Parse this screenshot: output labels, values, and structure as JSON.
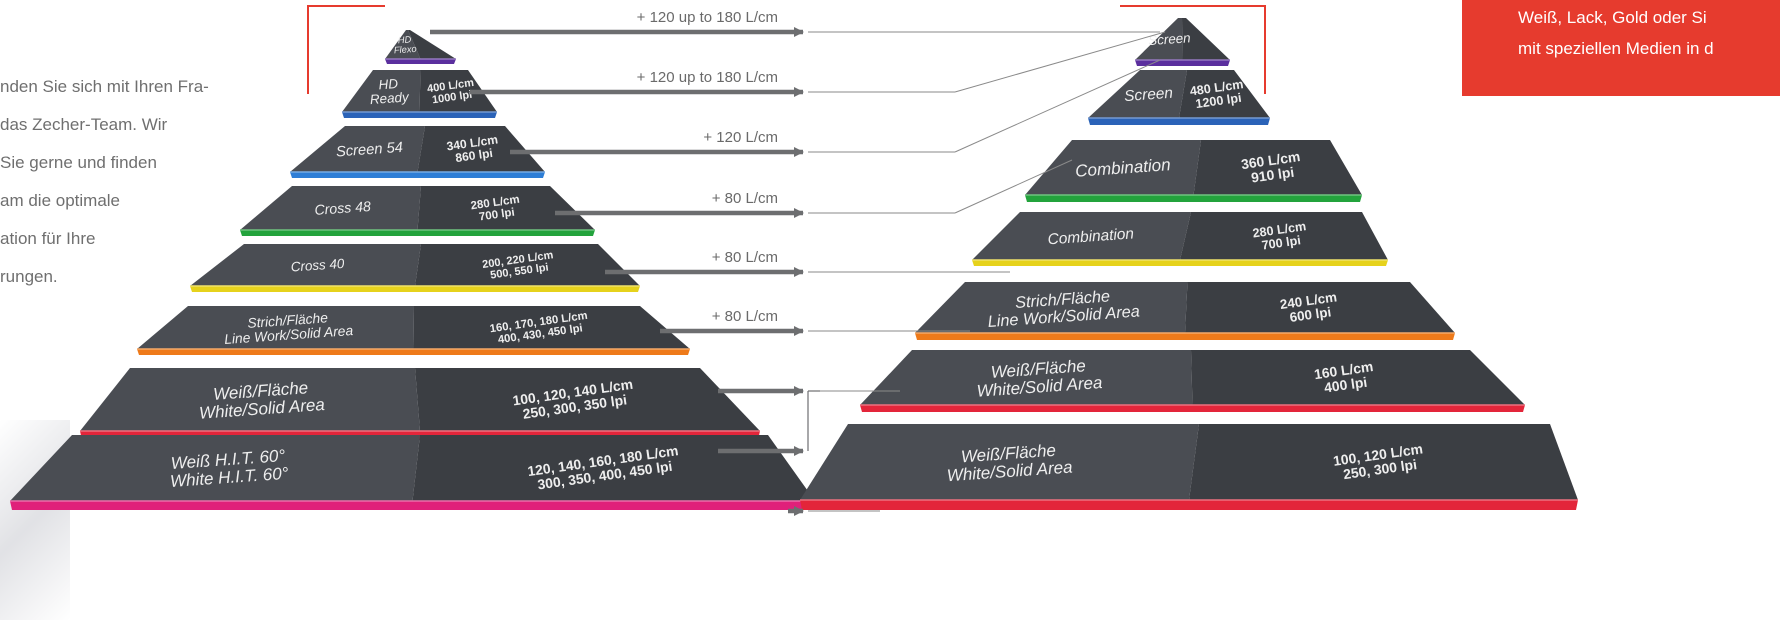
{
  "intro_text": {
    "lines": [
      "nden Sie sich mit Ihren Fra-",
      "das Zecher-Team. Wir",
      "Sie gerne und finden",
      "am die optimale",
      "ation für Ihre",
      "rungen."
    ]
  },
  "red_box": {
    "lines": [
      "Weiß, Lack, Gold oder Si",
      "mit speziellen Medien in d"
    ]
  },
  "colors": {
    "layer_top": "#45484e",
    "layer_front": "#3a3d42",
    "arrow": "#6d6e70",
    "label_text": "#eeeeee",
    "bracket": "#e63b2e",
    "red_box": "#e63b2e"
  },
  "arrows": [
    {
      "label": "+ 120 up to 180 L/cm"
    },
    {
      "label": "+ 120 up to 180 L/cm"
    },
    {
      "label": "+ 120 L/cm"
    },
    {
      "label": "+ 80 L/cm"
    },
    {
      "label": "+ 80 L/cm"
    },
    {
      "label": "+ 80 L/cm"
    },
    {
      "label": ""
    },
    {
      "label": ""
    },
    {
      "label": ""
    }
  ],
  "left_pyramid": {
    "layers": [
      {
        "name": [
          "HD",
          "Flexo"
        ],
        "spec": [
          "",
          ""
        ],
        "color": "#5b2f9e"
      },
      {
        "name": [
          "HD",
          "Ready"
        ],
        "spec": [
          "400 L/cm",
          "1000 lpi"
        ],
        "color": "#2b63b8"
      },
      {
        "name": [
          "Screen 54"
        ],
        "spec": [
          "340 L/cm",
          "860 lpi"
        ],
        "color": "#2e7ed6"
      },
      {
        "name": [
          "Cross 48"
        ],
        "spec": [
          "280 L/cm",
          "700 lpi"
        ],
        "color": "#23a33c"
      },
      {
        "name": [
          "Cross 40"
        ],
        "spec": [
          "200, 220 L/cm",
          "500, 550 lpi"
        ],
        "color": "#e6d21c"
      },
      {
        "name": [
          "Strich/Fläche",
          "Line Work/Solid Area"
        ],
        "spec": [
          "160, 170, 180 L/cm",
          "400, 430, 450 lpi"
        ],
        "color": "#ee7a1a"
      },
      {
        "name": [
          "Weiß/Fläche",
          "White/Solid Area"
        ],
        "spec": [
          "100, 120, 140 L/cm",
          "250, 300, 350 lpi"
        ],
        "color": "#e3253a"
      },
      {
        "name": [
          "Weiß H.I.T. 60°",
          "White H.I.T. 60°"
        ],
        "spec": [
          "120, 140, 160, 180 L/cm",
          "300, 350, 400, 450 lpi"
        ],
        "color": "#e0207a"
      }
    ]
  },
  "right_pyramid": {
    "layers": [
      {
        "name": [
          "Screen"
        ],
        "spec": [
          "",
          ""
        ],
        "color": "#5b2f9e"
      },
      {
        "name": [
          "Screen"
        ],
        "spec": [
          "480 L/cm",
          "1200 lpi"
        ],
        "color": "#2b63b8"
      },
      {
        "name": [
          "Combination"
        ],
        "spec": [
          "360 L/cm",
          "910 lpi"
        ],
        "color": "#23a33c"
      },
      {
        "name": [
          "Combination"
        ],
        "spec": [
          "280 L/cm",
          "700 lpi"
        ],
        "color": "#e6d21c"
      },
      {
        "name": [
          "Strich/Fläche",
          "Line Work/Solid Area"
        ],
        "spec": [
          "240 L/cm",
          "600 lpi"
        ],
        "color": "#ee7a1a"
      },
      {
        "name": [
          "Weiß/Fläche",
          "White/Solid Area"
        ],
        "spec": [
          "160 L/cm",
          "400 lpi"
        ],
        "color": "#e3253a"
      },
      {
        "name": [
          "Weiß/Fläche",
          "White/Solid Area"
        ],
        "spec": [
          "100, 120 L/cm",
          "250, 300 lpi"
        ],
        "color": "#e3253a"
      }
    ]
  }
}
